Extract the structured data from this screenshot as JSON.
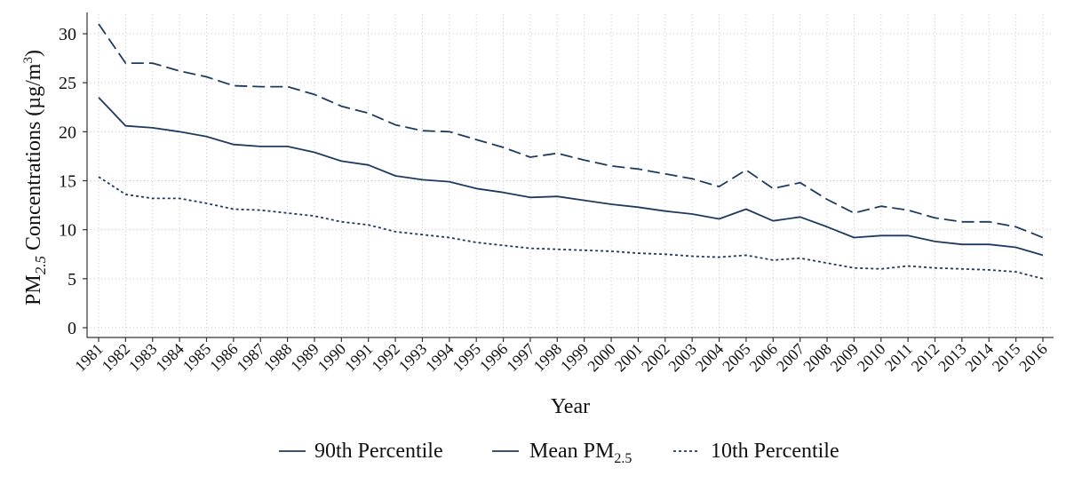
{
  "chart_data": {
    "type": "line",
    "xlabel": "Year",
    "ylabel": {
      "prefix": "PM",
      "subscript": "2.5",
      "suffix": " Concentrations (µg/m",
      "superscript": "3",
      "end": ")"
    },
    "x": [
      "1981",
      "1982",
      "1983",
      "1984",
      "1985",
      "1986",
      "1987",
      "1988",
      "1989",
      "1990",
      "1991",
      "1992",
      "1993",
      "1994",
      "1995",
      "1996",
      "1997",
      "1998",
      "1999",
      "2000",
      "2001",
      "2002",
      "2003",
      "2004",
      "2005",
      "2006",
      "2007",
      "2008",
      "2009",
      "2010",
      "2011",
      "2012",
      "2013",
      "2014",
      "2015",
      "2016"
    ],
    "yticks": [
      "0",
      "5",
      "10",
      "15",
      "20",
      "25",
      "30"
    ],
    "ylim": [
      0,
      31.5
    ],
    "grid": true,
    "legend_position": "bottom",
    "series": [
      {
        "name": "90th Percentile",
        "name_subscript": "",
        "style": "dashed",
        "color": "#1f3a5f",
        "values": [
          31.0,
          27.0,
          27.0,
          26.2,
          25.6,
          24.7,
          24.6,
          24.6,
          23.8,
          22.6,
          21.9,
          20.7,
          20.1,
          20.0,
          19.2,
          18.4,
          17.4,
          17.8,
          17.1,
          16.5,
          16.2,
          15.7,
          15.2,
          14.4,
          16.1,
          14.2,
          14.8,
          13.1,
          11.7,
          12.4,
          12.0,
          11.2,
          10.8,
          10.8,
          10.3,
          9.2
        ]
      },
      {
        "name": "Mean PM",
        "name_subscript": "2.5",
        "style": "solid",
        "color": "#1f3a5f",
        "values": [
          23.5,
          20.6,
          20.4,
          20.0,
          19.5,
          18.7,
          18.5,
          18.5,
          17.9,
          17.0,
          16.6,
          15.5,
          15.1,
          14.9,
          14.2,
          13.8,
          13.3,
          13.4,
          13.0,
          12.6,
          12.3,
          11.9,
          11.6,
          11.1,
          12.1,
          10.9,
          11.3,
          10.3,
          9.2,
          9.4,
          9.4,
          8.8,
          8.5,
          8.5,
          8.2,
          7.4
        ]
      },
      {
        "name": "10th Percentile",
        "name_subscript": "",
        "style": "dotted",
        "color": "#1f3a5f",
        "values": [
          15.4,
          13.6,
          13.2,
          13.2,
          12.7,
          12.1,
          12.0,
          11.7,
          11.4,
          10.8,
          10.5,
          9.8,
          9.5,
          9.2,
          8.7,
          8.4,
          8.1,
          8.0,
          7.9,
          7.8,
          7.6,
          7.5,
          7.3,
          7.2,
          7.4,
          6.9,
          7.1,
          6.6,
          6.1,
          6.0,
          6.3,
          6.1,
          6.0,
          5.9,
          5.7,
          5.0
        ]
      }
    ]
  }
}
